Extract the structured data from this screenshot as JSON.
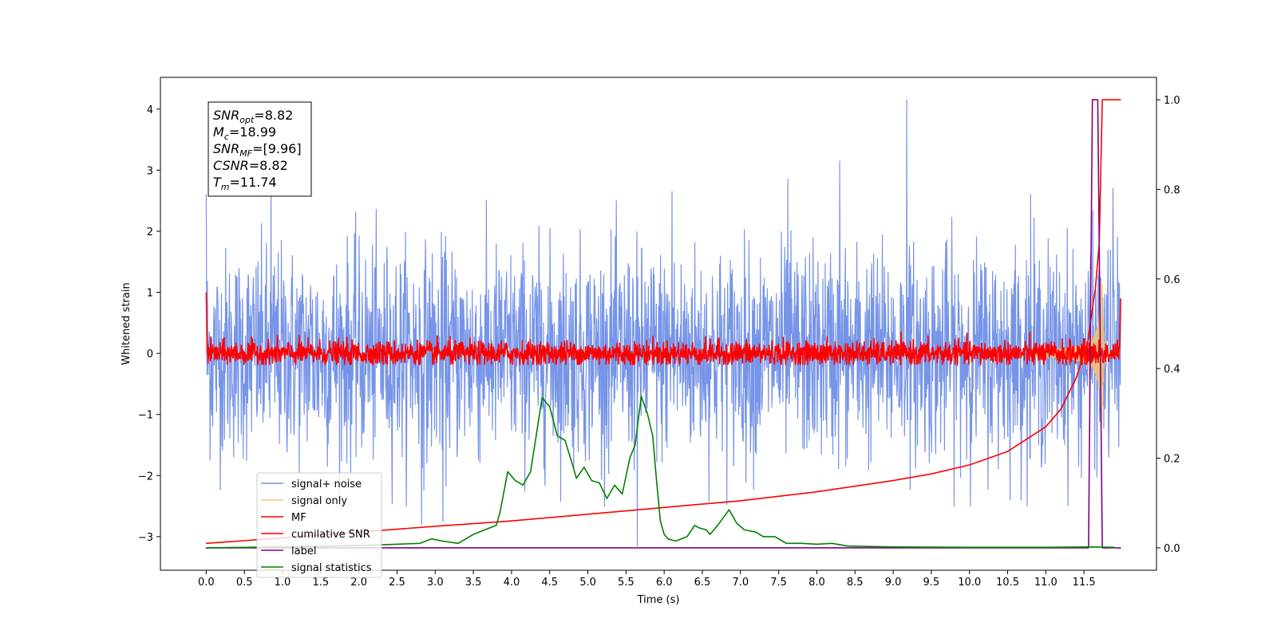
{
  "chart_data": {
    "type": "line",
    "xlabel": "Time (s)",
    "ylabel": "Whitened strain",
    "xlim": [
      -0.6,
      12.45
    ],
    "ylim": [
      -3.55,
      4.52
    ],
    "y2lim": [
      -0.05,
      1.05
    ],
    "x_ticks": [
      "0.0",
      "0.5",
      "1.0",
      "1.5",
      "2.0",
      "2.5",
      "3.0",
      "3.5",
      "4.0",
      "4.5",
      "5.0",
      "5.5",
      "6.0",
      "6.5",
      "7.0",
      "7.5",
      "8.0",
      "8.5",
      "9.0",
      "9.5",
      "10.0",
      "10.5",
      "11.0",
      "11.5"
    ],
    "y_ticks": [
      "4",
      "3",
      "2",
      "1",
      "0",
      "−1",
      "−2",
      "−3"
    ],
    "y2_ticks": [
      "1.0",
      "0.8",
      "0.6",
      "0.4",
      "0.2",
      "0.0"
    ],
    "annotation_lines": [
      {
        "sym": "SNR",
        "sub": "opt",
        "val": "=8.82"
      },
      {
        "sym": "M",
        "sub": "c",
        "val": "=18.99"
      },
      {
        "sym": "SNR",
        "sub": "MF",
        "val": "=[9.96]"
      },
      {
        "sym": "CSNR",
        "sub": "",
        "val": "=8.82"
      },
      {
        "sym": "T",
        "sub": "m",
        "val": "=11.74"
      }
    ],
    "legend_position": "lower-left",
    "series": [
      {
        "name": "signal+ noise",
        "color": "#7694e8",
        "axis": "left",
        "noise_sigma": 0.85,
        "spikes": [
          [
            0.85,
            2.9
          ],
          [
            9.18,
            4.15
          ],
          [
            5.65,
            -3.15
          ],
          [
            7.62,
            2.85
          ],
          [
            8.3,
            3.15
          ],
          [
            11.88,
            2.7
          ],
          [
            0.0,
            2.6
          ],
          [
            2.82,
            -2.8
          ],
          [
            10.8,
            2.6
          ],
          [
            6.1,
            2.65
          ],
          [
            3.1,
            -2.75
          ]
        ]
      },
      {
        "name": "signal only",
        "color": "#f5c26b",
        "axis": "left",
        "chirp_end": 11.74,
        "max_amplitude": 1.2
      },
      {
        "name": "MF",
        "color": "#ff0000",
        "axis": "left",
        "noise_sigma": 0.1
      },
      {
        "name": "cumilative SNR",
        "color": "#ff0000",
        "axis": "right",
        "points": [
          [
            0,
            0.01
          ],
          [
            1,
            0.022
          ],
          [
            2,
            0.035
          ],
          [
            3,
            0.048
          ],
          [
            4,
            0.06
          ],
          [
            5,
            0.075
          ],
          [
            6,
            0.09
          ],
          [
            7,
            0.105
          ],
          [
            8,
            0.125
          ],
          [
            9,
            0.15
          ],
          [
            9.5,
            0.165
          ],
          [
            10,
            0.185
          ],
          [
            10.5,
            0.215
          ],
          [
            11,
            0.27
          ],
          [
            11.2,
            0.31
          ],
          [
            11.4,
            0.38
          ],
          [
            11.55,
            0.46
          ],
          [
            11.65,
            0.58
          ],
          [
            11.7,
            0.68
          ],
          [
            11.74,
            1.0
          ],
          [
            11.98,
            1.0
          ]
        ]
      },
      {
        "name": "label",
        "color": "#800080",
        "axis": "right",
        "points": [
          [
            0,
            0.0
          ],
          [
            11.56,
            0.0
          ],
          [
            11.61,
            1.0
          ],
          [
            11.68,
            1.0
          ],
          [
            11.74,
            0.0
          ],
          [
            11.98,
            0.0
          ]
        ]
      },
      {
        "name": "signal statistics",
        "color": "#008000",
        "axis": "right",
        "points": [
          [
            0,
            0.0
          ],
          [
            1,
            0.002
          ],
          [
            2,
            0.005
          ],
          [
            2.5,
            0.008
          ],
          [
            2.8,
            0.01
          ],
          [
            2.95,
            0.02
          ],
          [
            3.1,
            0.015
          ],
          [
            3.3,
            0.01
          ],
          [
            3.5,
            0.03
          ],
          [
            3.65,
            0.04
          ],
          [
            3.8,
            0.05
          ],
          [
            3.85,
            0.08
          ],
          [
            3.95,
            0.17
          ],
          [
            4.05,
            0.15
          ],
          [
            4.15,
            0.14
          ],
          [
            4.25,
            0.17
          ],
          [
            4.4,
            0.335
          ],
          [
            4.5,
            0.315
          ],
          [
            4.6,
            0.25
          ],
          [
            4.7,
            0.24
          ],
          [
            4.8,
            0.185
          ],
          [
            4.85,
            0.155
          ],
          [
            4.95,
            0.18
          ],
          [
            5.05,
            0.15
          ],
          [
            5.15,
            0.145
          ],
          [
            5.25,
            0.11
          ],
          [
            5.35,
            0.14
          ],
          [
            5.45,
            0.12
          ],
          [
            5.55,
            0.2
          ],
          [
            5.62,
            0.23
          ],
          [
            5.7,
            0.338
          ],
          [
            5.78,
            0.3
          ],
          [
            5.85,
            0.25
          ],
          [
            5.9,
            0.15
          ],
          [
            5.95,
            0.06
          ],
          [
            6.0,
            0.03
          ],
          [
            6.05,
            0.02
          ],
          [
            6.15,
            0.015
          ],
          [
            6.3,
            0.025
          ],
          [
            6.4,
            0.05
          ],
          [
            6.45,
            0.045
          ],
          [
            6.55,
            0.04
          ],
          [
            6.6,
            0.03
          ],
          [
            6.7,
            0.05
          ],
          [
            6.85,
            0.085
          ],
          [
            6.95,
            0.055
          ],
          [
            7.05,
            0.04
          ],
          [
            7.2,
            0.035
          ],
          [
            7.3,
            0.025
          ],
          [
            7.45,
            0.025
          ],
          [
            7.6,
            0.01
          ],
          [
            7.8,
            0.01
          ],
          [
            8.0,
            0.008
          ],
          [
            8.2,
            0.01
          ],
          [
            8.4,
            0.004
          ],
          [
            9,
            0.002
          ],
          [
            10,
            0.001
          ],
          [
            11,
            0.001
          ],
          [
            11.6,
            0.002
          ],
          [
            11.9,
            0.001
          ]
        ]
      }
    ]
  }
}
